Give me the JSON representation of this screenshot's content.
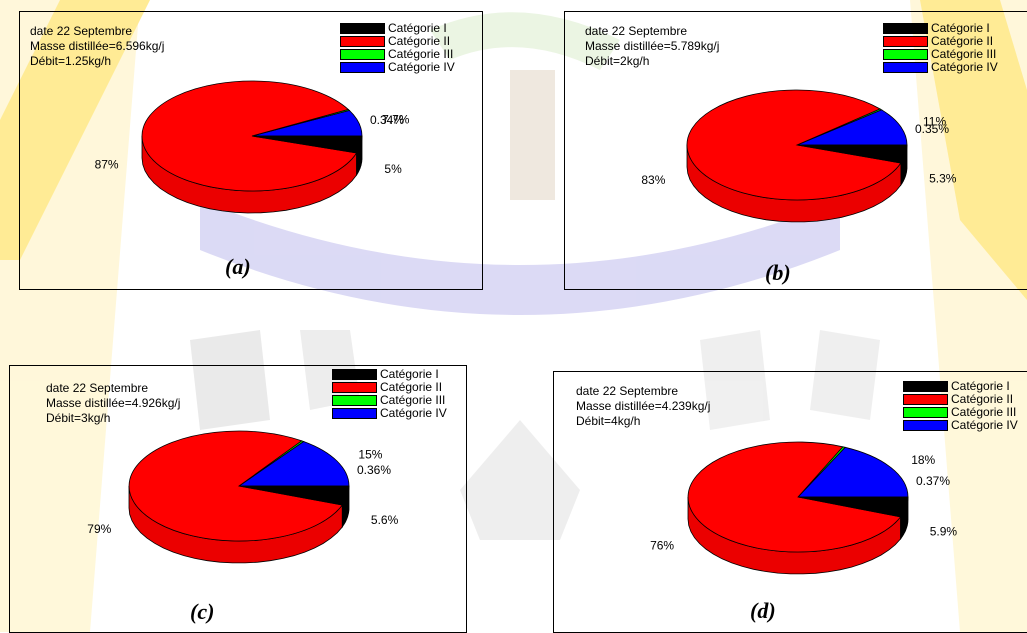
{
  "colors": {
    "cat1": "#000000",
    "cat2": "#ff0000",
    "cat3": "#00ff00",
    "cat4": "#0000ff"
  },
  "chart_data": [
    {
      "type": "pie",
      "caption": "(a)",
      "lines": [
        "date 22 Septembre",
        "Masse distillée=6.596kg/j",
        "Débit=1.25kg/h"
      ],
      "legend": [
        "Catégorie I",
        "Catégorie II",
        "Catégorie III",
        "Catégorie IV"
      ],
      "values": [
        5,
        87,
        0.34,
        7.7
      ],
      "labels": [
        "5%",
        "87%",
        "0.34%",
        "7.7%"
      ]
    },
    {
      "type": "pie",
      "caption": "(b)",
      "lines": [
        "date 22 Septembre",
        "Masse distillée=5.789kg/j",
        "Débit=2kg/h"
      ],
      "legend": [
        "Catégorie I",
        "Catégorie II",
        "Catégorie III",
        "Catégorie IV"
      ],
      "values": [
        5.3,
        83,
        0.35,
        11
      ],
      "labels": [
        "5.3%",
        "83%",
        "0.35%",
        "11%"
      ]
    },
    {
      "type": "pie",
      "caption": "(c)",
      "lines": [
        "date 22 Septembre",
        "Masse distillée=4.926kg/j",
        "Débit=3kg/h"
      ],
      "legend": [
        "Catégorie I",
        "Catégorie II",
        "Catégorie III",
        "Catégorie IV"
      ],
      "values": [
        5.6,
        79,
        0.36,
        15
      ],
      "labels": [
        "5.6%",
        "79%",
        "0.36%",
        "15%"
      ]
    },
    {
      "type": "pie",
      "caption": "(d)",
      "lines": [
        "date 22 Septembre",
        "Masse distillée=4.239kg/j",
        "Débit=4kg/h"
      ],
      "legend": [
        "Catégorie I",
        "Catégorie II",
        "Catégorie III",
        "Catégorie IV"
      ],
      "values": [
        5.9,
        76,
        0.37,
        18
      ],
      "labels": [
        "5.9%",
        "76%",
        "0.37%",
        "18%"
      ]
    }
  ]
}
